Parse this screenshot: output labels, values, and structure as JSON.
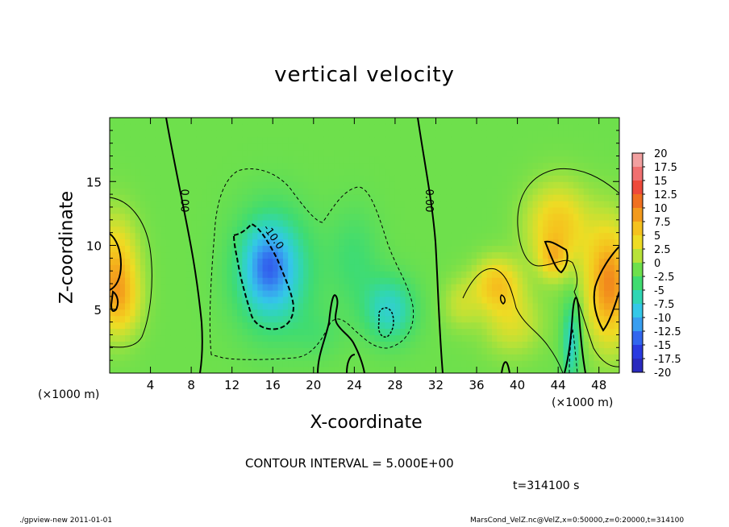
{
  "chart_data": {
    "type": "heatmap",
    "title": "vertical velocity",
    "xlabel": "X-coordinate",
    "ylabel": "Z-coordinate",
    "x_unit_left": "(×1000 m)",
    "x_unit_right": "(×1000 m)",
    "xlim": [
      0,
      50
    ],
    "ylim": [
      0,
      20
    ],
    "x_ticks": [
      4,
      8,
      12,
      16,
      20,
      24,
      28,
      32,
      36,
      40,
      44,
      48
    ],
    "y_ticks": [
      5,
      10,
      15
    ],
    "colorbar": {
      "labels": [
        "20",
        "17.5",
        "15",
        "12.5",
        "10",
        "7.5",
        "5",
        "2.5",
        "0",
        "-2.5",
        "-5",
        "-7.5",
        "-10",
        "-12.5",
        "-15",
        "-17.5",
        "-20"
      ],
      "levels": [
        20,
        17.5,
        15,
        12.5,
        10,
        7.5,
        5,
        2.5,
        0,
        -2.5,
        -5,
        -7.5,
        -10,
        -12.5,
        -15,
        -17.5,
        -20
      ],
      "colors": [
        "#f2a0a0",
        "#f07070",
        "#ee4a3a",
        "#f07020",
        "#f39a1c",
        "#f5c21e",
        "#eedc24",
        "#b8e238",
        "#6ee04c",
        "#40dc70",
        "#30d6b4",
        "#34c8e8",
        "#389ef0",
        "#3266ee",
        "#2a3ae0",
        "#2a2abe",
        "#5a1aa6"
      ]
    },
    "contour_labels": [
      {
        "text": "0.00",
        "x": 7.0,
        "z": 13.5
      },
      {
        "text": "0.00",
        "x": 31.0,
        "z": 13.5
      },
      {
        "text": "-10.0",
        "x": 15.8,
        "z": 10.5
      }
    ],
    "blobs": [
      {
        "x": 16.0,
        "z": 8.0,
        "sx": 3.6,
        "sz": 4.5,
        "a": -8
      },
      {
        "x": 15.5,
        "z": 8.5,
        "sx": 2.0,
        "sz": 2.7,
        "a": -5
      },
      {
        "x": 27.5,
        "z": 5.0,
        "sx": 2.5,
        "sz": 2.5,
        "a": -6
      },
      {
        "x": 24.0,
        "z": 9.0,
        "sx": 2.6,
        "sz": 4.0,
        "a": -2.5
      },
      {
        "x": 20.5,
        "z": 3.0,
        "sx": 2.5,
        "sz": 2.0,
        "a": -1.5
      },
      {
        "x": 45.3,
        "z": 2.5,
        "sx": 0.9,
        "sz": 3.2,
        "a": -6
      },
      {
        "x": 0.5,
        "z": 8.0,
        "sx": 2.2,
        "sz": 4.0,
        "a": 8
      },
      {
        "x": 1.0,
        "z": 5.5,
        "sx": 2.0,
        "sz": 2.5,
        "a": 4
      },
      {
        "x": 49.0,
        "z": 7.0,
        "sx": 2.2,
        "sz": 4.5,
        "a": 11
      },
      {
        "x": 44.0,
        "z": 11.5,
        "sx": 3.0,
        "sz": 3.2,
        "a": 7
      },
      {
        "x": 43.5,
        "z": 9.0,
        "sx": 1.3,
        "sz": 1.5,
        "a": 5
      },
      {
        "x": 38.0,
        "z": 7.0,
        "sx": 2.2,
        "sz": 2.0,
        "a": 7
      },
      {
        "x": 39.5,
        "z": 4.0,
        "sx": 2.8,
        "sz": 2.5,
        "a": 4
      },
      {
        "x": 34.5,
        "z": 5.5,
        "sx": 1.8,
        "sz": 2.0,
        "a": 3
      }
    ]
  },
  "contour_interval": "CONTOUR INTERVAL = 5.000E+00",
  "time_label": "t=314100 s",
  "footer_left": "./gpview-new   2011-01-01",
  "footer_right": "MarsCond_VelZ.nc@VelZ,x=0:50000,z=0:20000,t=314100"
}
